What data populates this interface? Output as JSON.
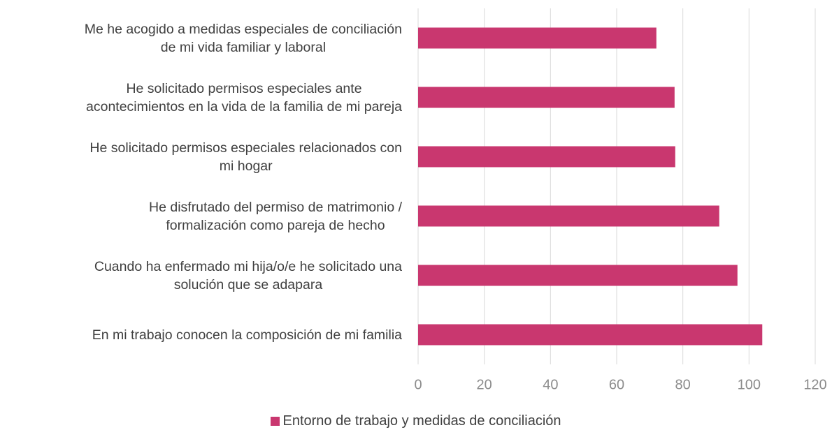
{
  "chart_data": {
    "type": "barh",
    "categories": [
      "Me he acogido a medidas especiales de conciliación\nde mi vida familiar y laboral",
      "He solicitado permisos especiales ante\nacontecimientos en la vida de la familia de mi pareja",
      "He solicitado permisos especiales relacionados con\nmi hogar",
      "He disfrutado del permiso de matrimonio /\nformalización como pareja de hecho",
      "Cuando ha enfermado mi hija/o/e he solicitado una\nsolución que se adapara",
      "En mi trabajo conocen la composición de mi familia"
    ],
    "series": [
      {
        "name": "Entorno de trabajo y medidas de conciliación",
        "color": "#c9376f",
        "values": [
          72,
          77.5,
          77.7,
          91,
          96.5,
          104
        ]
      }
    ],
    "xlim": [
      0,
      120
    ],
    "xticks": [
      0,
      20,
      40,
      60,
      80,
      100,
      120
    ],
    "grid": true,
    "legend": "bottom"
  }
}
